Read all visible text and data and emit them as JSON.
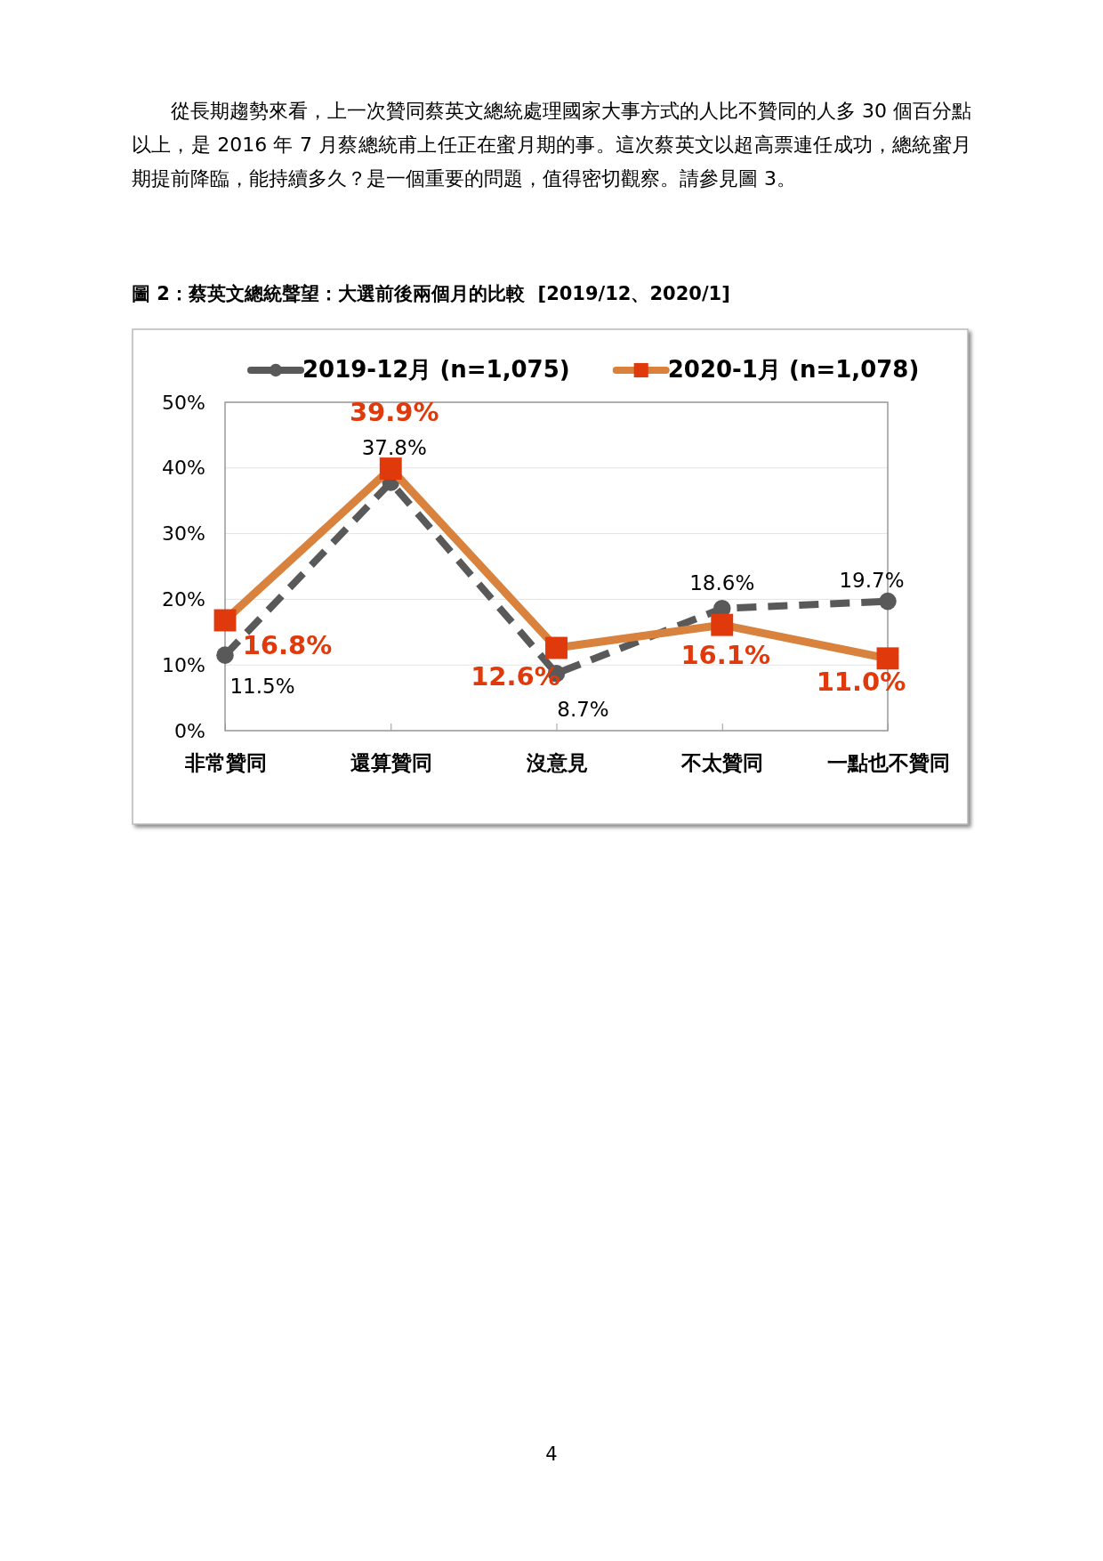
{
  "chart_data": {
    "type": "line",
    "title": "圖 2：蔡英文總統聲望：大選前後兩個月的比較  [2019/12、2020/1]",
    "annotations": [
      "從長期趨勢來看，上一次贊同蔡英文總統處理國家大事方式的人比不贊同的人多 30 個百分點以上，是 2016 年 7 月蔡總統甫上任正在蜜月期的事。這次蔡英文以超高票連任成功，總統蜜月期提前降臨，能持續多久？是一個重要的問題，值得密切觀察。請參見圖 3。",
      "4"
    ],
    "categories": [
      "非常贊同",
      "還算贊同",
      "沒意見",
      "不太贊同",
      "一點也不贊同"
    ],
    "series": [
      {
        "name": "2019-12月 (n=1,075)",
        "color": "#595959",
        "marker": "circle",
        "line_style": "dashed",
        "values": [
          11.5,
          37.8,
          8.7,
          18.6,
          19.7
        ],
        "value_labels": [
          "11.5%",
          "37.8%",
          "8.7%",
          "18.6%",
          "19.7%"
        ]
      },
      {
        "name": "2020-1月 (n=1,078)",
        "color": "#d8823e",
        "colors": [
          "#e03a0c",
          "#e03a0c",
          "#e03a0c",
          "#e03a0c",
          "#e03a0c"
        ],
        "marker": "square",
        "line_style": "solid",
        "values": [
          16.8,
          39.9,
          12.6,
          16.1,
          11.0
        ],
        "value_labels": [
          "16.8%",
          "39.9%",
          "12.6%",
          "16.1%",
          "11.0%"
        ]
      }
    ],
    "ylim": [
      0,
      50
    ],
    "yticks": [
      {
        "value": 0,
        "label": "0%"
      },
      {
        "value": 10,
        "label": "10%"
      },
      {
        "value": 20,
        "label": "20%"
      },
      {
        "value": 30,
        "label": "30%"
      },
      {
        "value": 40,
        "label": "40%"
      },
      {
        "value": 50,
        "label": "50%"
      }
    ],
    "grid": "y",
    "legend": "top"
  }
}
